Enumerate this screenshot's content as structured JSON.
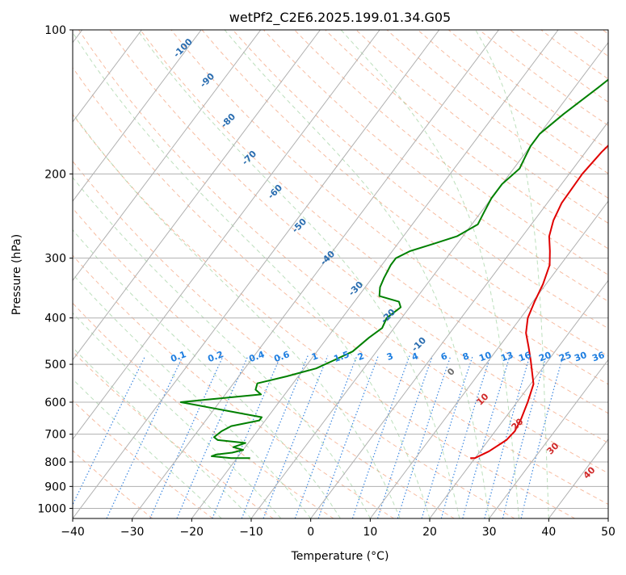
{
  "chart_data": {
    "type": "line",
    "title": "wetPf2_C2E6.2025.199.01.34.G05",
    "xlabel": "Temperature (°C)",
    "ylabel": "Pressure (hPa)",
    "xlim": [
      -40,
      50
    ],
    "ylim": [
      1050,
      100
    ],
    "y_scale": "log",
    "x_ticks": [
      "−40",
      "−30",
      "−20",
      "−10",
      "0",
      "10",
      "20",
      "30",
      "40",
      "50"
    ],
    "y_ticks": [
      1000,
      900,
      800,
      700,
      600,
      500,
      400,
      300,
      200,
      100
    ],
    "grid": true,
    "series": [
      {
        "role": "temperature",
        "color": "#e00000",
        "points": [
          [
            19.2,
            785
          ],
          [
            20,
            785
          ],
          [
            21.5,
            760
          ],
          [
            23,
            720
          ],
          [
            23.3,
            690
          ],
          [
            22.8,
            650
          ],
          [
            21.8,
            600
          ],
          [
            20.5,
            550
          ],
          [
            18.8,
            520
          ],
          [
            17,
            490
          ],
          [
            15,
            460
          ],
          [
            12.8,
            430
          ],
          [
            11.2,
            400
          ],
          [
            10.3,
            370
          ],
          [
            9.5,
            340
          ],
          [
            8.2,
            310
          ],
          [
            6.5,
            290
          ],
          [
            4.5,
            270
          ],
          [
            3.2,
            250
          ],
          [
            2.4,
            230
          ],
          [
            2.2,
            200
          ],
          [
            2.7,
            180
          ],
          [
            3.8,
            160
          ],
          [
            4.2,
            140
          ],
          [
            4,
            125
          ],
          [
            4.8,
            115
          ],
          [
            7.5,
            108
          ],
          [
            10.5,
            100
          ]
        ]
      },
      {
        "role": "dewpoint",
        "color": "#008000",
        "points": [
          [
            -17.8,
            785
          ],
          [
            -21,
            785
          ],
          [
            -24.5,
            778
          ],
          [
            -24,
            772
          ],
          [
            -21.5,
            765
          ],
          [
            -20,
            755
          ],
          [
            -22,
            745
          ],
          [
            -20.5,
            730
          ],
          [
            -25.5,
            720
          ],
          [
            -26.5,
            710
          ],
          [
            -26,
            690
          ],
          [
            -25,
            673
          ],
          [
            -21,
            655
          ],
          [
            -21,
            645
          ],
          [
            -26,
            630
          ],
          [
            -36.5,
            600
          ],
          [
            -31,
            590
          ],
          [
            -24,
            578
          ],
          [
            -25.5,
            565
          ],
          [
            -26,
            548
          ],
          [
            -22,
            530
          ],
          [
            -18,
            510
          ],
          [
            -16,
            490
          ],
          [
            -14,
            470
          ],
          [
            -13,
            440
          ],
          [
            -12,
            420
          ],
          [
            -12.5,
            400
          ],
          [
            -11.5,
            380
          ],
          [
            -12.5,
            370
          ],
          [
            -16.5,
            360
          ],
          [
            -17.5,
            345
          ],
          [
            -18,
            330
          ],
          [
            -18.5,
            310
          ],
          [
            -18.5,
            300
          ],
          [
            -17,
            290
          ],
          [
            -14,
            280
          ],
          [
            -11,
            270
          ],
          [
            -9,
            255
          ],
          [
            -9.5,
            240
          ],
          [
            -10,
            225
          ],
          [
            -10,
            210
          ],
          [
            -9,
            195
          ],
          [
            -9.5,
            185
          ],
          [
            -10,
            175
          ],
          [
            -10,
            165
          ],
          [
            -8.5,
            150
          ],
          [
            -6,
            132
          ],
          [
            -4,
            118
          ],
          [
            -3,
            110
          ],
          [
            -1,
            100
          ]
        ]
      }
    ],
    "dry_adiabat_labels": [
      "-100",
      "-90",
      "-80",
      "-70",
      "-60",
      "-50",
      "-40",
      "-30",
      "-20",
      "-10",
      "0",
      "10",
      "20",
      "30",
      "40"
    ],
    "mixing_ratio_labels": [
      "0.1",
      "0.2",
      "0.4",
      "0.6",
      "1",
      "1.5",
      "2",
      "3",
      "4",
      "6",
      "8",
      "10",
      "13",
      "16",
      "20",
      "25",
      "30",
      "36"
    ]
  }
}
